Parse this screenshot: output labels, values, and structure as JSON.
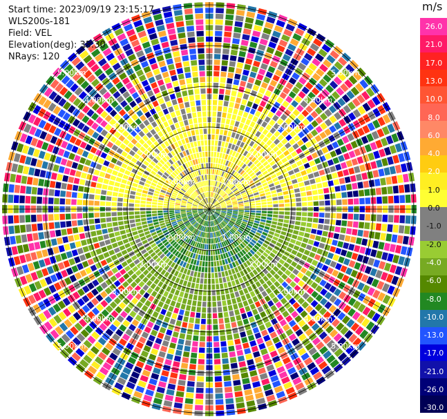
{
  "header": {
    "start_time": "Start time: 2023/09/19 23:15:17",
    "instrument": "WLS200s-181",
    "field": "Field: VEL",
    "elevation": "Elevation(deg): 35.30",
    "nrays": "NRays: 120"
  },
  "colorbar": {
    "unit": "m/s",
    "ticks": [
      "26.0",
      "21.0",
      "17.0",
      "13.0",
      "10.0",
      "8.0",
      "6.0",
      "4.0",
      "2.0",
      "1.0",
      "0.0",
      "-1.0",
      "-2.0",
      "-4.0",
      "-6.0",
      "-8.0",
      "-10.0",
      "-13.0",
      "-17.0",
      "-21.0",
      "-26.0",
      "-30.0"
    ],
    "colors": [
      "#ff33aa",
      "#ff1a66",
      "#ff2222",
      "#ff3311",
      "#ff5533",
      "#ff6655",
      "#ff8866",
      "#ffaa33",
      "#ffcc11",
      "#ffee22",
      "#ffff33",
      "#808080",
      "#808080",
      "#99cc33",
      "#77aa22",
      "#558800",
      "#228822",
      "#2277aa",
      "#2255ff",
      "#0000dd",
      "#1111aa",
      "#000077",
      "#000055"
    ]
  },
  "range_labels": [
    "1.00km",
    "2.00km",
    "3.00km",
    "4.00km",
    "5.00km"
  ]
}
